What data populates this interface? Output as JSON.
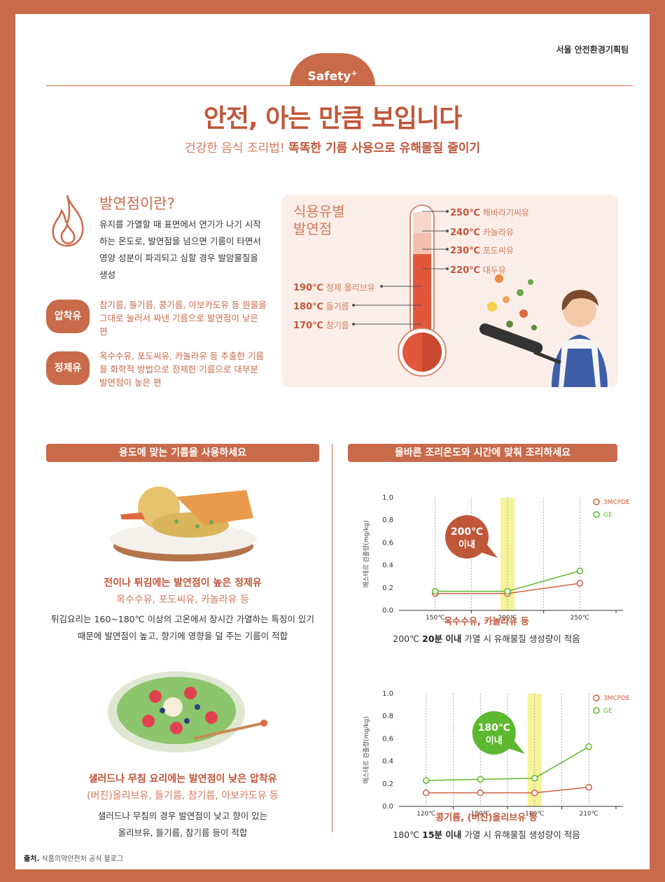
{
  "header": {
    "team": "서울 안전환경기획팀",
    "badge": "Safety",
    "badge_sup": "+",
    "title": "안전, 아는 만큼 보입니다",
    "subtitle_plain": "건강한 음식 조리법! ",
    "subtitle_bold": "똑똑한 기름 사용으로 유해물질 줄이기"
  },
  "smoke_point": {
    "title": "발연점이란?",
    "desc": "유지를 가열할 때 표면에서 연기가 나기 시작하는 온도로, 발연점을 넘으면 기름이 타면서 영양 성분이 파괴되고 심할 경우 발암물질을 생성",
    "types": [
      {
        "label": "압착유",
        "text": "참기름, 들기름, 콩기름, 아보카도유 등 원물을 그대로 눌러서 짜낸 기름으로 발연점이 낮은 편"
      },
      {
        "label": "정제유",
        "text": "옥수수유, 포도씨유, 카놀라유 등 추출한 기름을 화학적 방법으로 정제한 기름으로 대부분 발연점이 높은 편"
      }
    ]
  },
  "thermometer": {
    "title_line1": "식용유별",
    "title_line2": "발연점",
    "right": [
      {
        "temp": "250℃",
        "oil": "해바라기씨유"
      },
      {
        "temp": "240℃",
        "oil": "카놀라유"
      },
      {
        "temp": "230℃",
        "oil": "포도씨유"
      },
      {
        "temp": "220℃",
        "oil": "대두유"
      }
    ],
    "left": [
      {
        "temp": "190℃",
        "oil": "정제 올리브유"
      },
      {
        "temp": "180℃",
        "oil": "들기름"
      },
      {
        "temp": "170℃",
        "oil": "참기름"
      }
    ]
  },
  "left_section": {
    "header": "용도에 맞는 기름을 사용하세요",
    "item1_title": "전이나 튀김에는 발연점이 높은 정제유",
    "item1_sub": "옥수수유, 포도씨유, 카놀라유 등",
    "item1_desc1": "튀김요리는 160~180℃ 이상의 고온에서 장시간 가열하는 특징이 있기",
    "item1_desc2": "때문에 발연점이 높고, 향기에 영향을 덜 주는 기름이 적합",
    "item2_title": "샐러드나 무침 요리에는 발연점이 낮은 압착유",
    "item2_sub": "(버진)올리브유, 들기름, 참기름, 아보카도유 등",
    "item2_desc1": "샐러드나 무침의 경우 발연점이 낮고 향이 있는",
    "item2_desc2": "올리브유, 들기름, 참기름 등이 적합"
  },
  "right_section": {
    "header": "올바른 조리온도와 시간에 맞춰 조리하세요",
    "chart1_caption": "옥수수유, 카놀라유 등",
    "chart1_desc_a": "200℃ ",
    "chart1_desc_b": "20분 이내",
    "chart1_desc_c": " 가열 시 유해물질 생성량이 적음",
    "chart2_caption": "콩기름, (버진)올리브유 등",
    "chart2_desc_a": "180℃ ",
    "chart2_desc_b": "15분 이내",
    "chart2_desc_c": " 가열 시 유해물질 생성량이 적음"
  },
  "chart_data": [
    {
      "type": "line",
      "ylabel": "에스테르 검출량(mg/kg)",
      "ylim": [
        0,
        1.0
      ],
      "yticks": [
        "0.0",
        "0.2",
        "0.4",
        "0.6",
        "0.8",
        "1.0"
      ],
      "x": [
        "150℃",
        "200℃",
        "250℃"
      ],
      "series": [
        {
          "name": "3MCPDE",
          "values": [
            0.15,
            0.15,
            0.24
          ],
          "color": "#d0603f"
        },
        {
          "name": "GE",
          "values": [
            0.17,
            0.17,
            0.35
          ],
          "color": "#5cb82e"
        }
      ],
      "callout": {
        "line1": "200℃",
        "line2": "이내",
        "color": "#c0573a"
      },
      "highlight": "200℃"
    },
    {
      "type": "line",
      "ylabel": "에스테르 검출량(mg/kg)",
      "ylim": [
        0,
        1.0
      ],
      "yticks": [
        "0.0",
        "0.2",
        "0.4",
        "0.6",
        "0.8",
        "1.0"
      ],
      "x": [
        "120℃",
        "150℃",
        "180℃",
        "210℃"
      ],
      "series": [
        {
          "name": "3MCPDE",
          "values": [
            0.12,
            0.12,
            0.12,
            0.17
          ],
          "color": "#d0603f"
        },
        {
          "name": "GE",
          "values": [
            0.23,
            0.24,
            0.25,
            0.53
          ],
          "color": "#5cb82e"
        }
      ],
      "callout": {
        "line1": "180℃",
        "line2": "이내",
        "color": "#5cb82e"
      },
      "highlight": "180℃"
    }
  ],
  "source": {
    "label": "출처.",
    "text": "식품의약안전처 공식 블로그"
  }
}
